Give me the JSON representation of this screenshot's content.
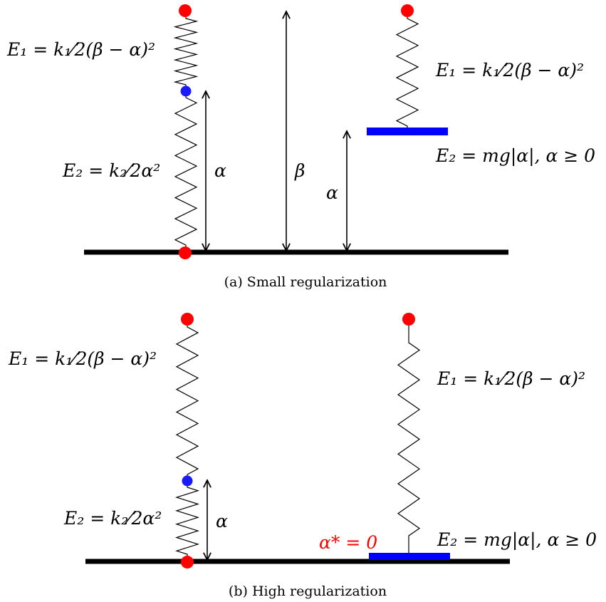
{
  "panels": [
    {
      "caption": "(a) Small regularization",
      "left_system": {
        "e1_formula": "E₁ = k₁⁄2(β − α)²",
        "e2_formula": "E₂ = k₂⁄2α²",
        "alpha_label": "α"
      },
      "beta_label": "β",
      "right_system": {
        "e1_formula": "E₁ = k₁⁄2(β − α)²",
        "e2_formula": "E₂ = mg|α|, α ≥ 0",
        "alpha_label": "α"
      }
    },
    {
      "caption": "(b) High regularization",
      "left_system": {
        "e1_formula": "E₁ = k₁⁄2(β − α)²",
        "e2_formula": "E₂ = k₂⁄2α²",
        "alpha_label": "α"
      },
      "right_system": {
        "e1_formula": "E₁ = k₁⁄2(β − α)²",
        "e2_formula": "E₂ = mg|α|, α ≥ 0",
        "alpha_star_label": "α* = 0"
      }
    }
  ],
  "colors": {
    "fixed_point": "#ff0000",
    "movable_point": "#1a1aff",
    "mass_plate": "#0000ff",
    "ground": "#000000",
    "alpha_star": "#ff0000"
  }
}
